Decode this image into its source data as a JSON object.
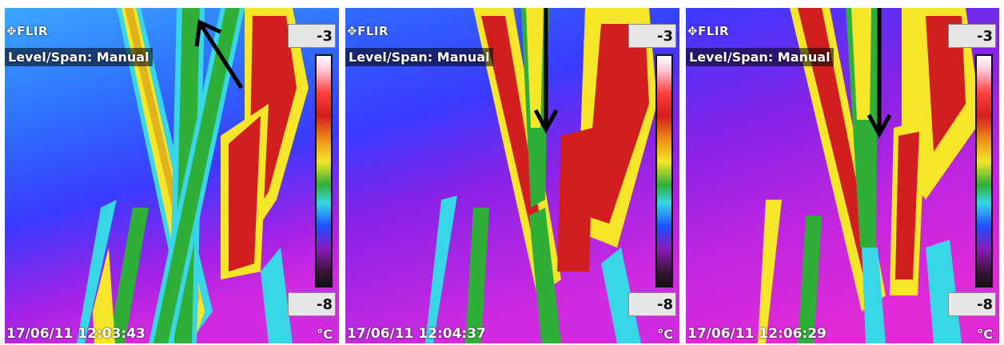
{
  "panels": [
    {
      "brand": "FLIR",
      "mode": "Level/Span: Manual",
      "scale_max": "-3",
      "scale_min": "-8",
      "unit": "°C",
      "timestamp": "17/06/11 12:03:43",
      "arrow_direction": "up-left"
    },
    {
      "brand": "FLIR",
      "mode": "Level/Span: Manual",
      "scale_max": "-3",
      "scale_min": "-8",
      "unit": "°C",
      "timestamp": "17/06/11 12:04:37",
      "arrow_direction": "down"
    },
    {
      "brand": "FLIR",
      "mode": "Level/Span: Manual",
      "scale_max": "-3",
      "scale_min": "-8",
      "unit": "°C",
      "timestamp": "17/06/11 12:06:29",
      "arrow_direction": "down"
    }
  ],
  "colors": {
    "background_cold": "#3a3aff",
    "background_mid": "#c026e0",
    "stem_cyan": "#38d6e6",
    "stem_green": "#2fae38",
    "stem_yellow": "#f5e62a",
    "stem_red": "#d21e1e",
    "arrow": "#000000"
  },
  "icons": {
    "brand_icon": "flir-logo-icon",
    "arrow_icon": "arrow-icon"
  }
}
